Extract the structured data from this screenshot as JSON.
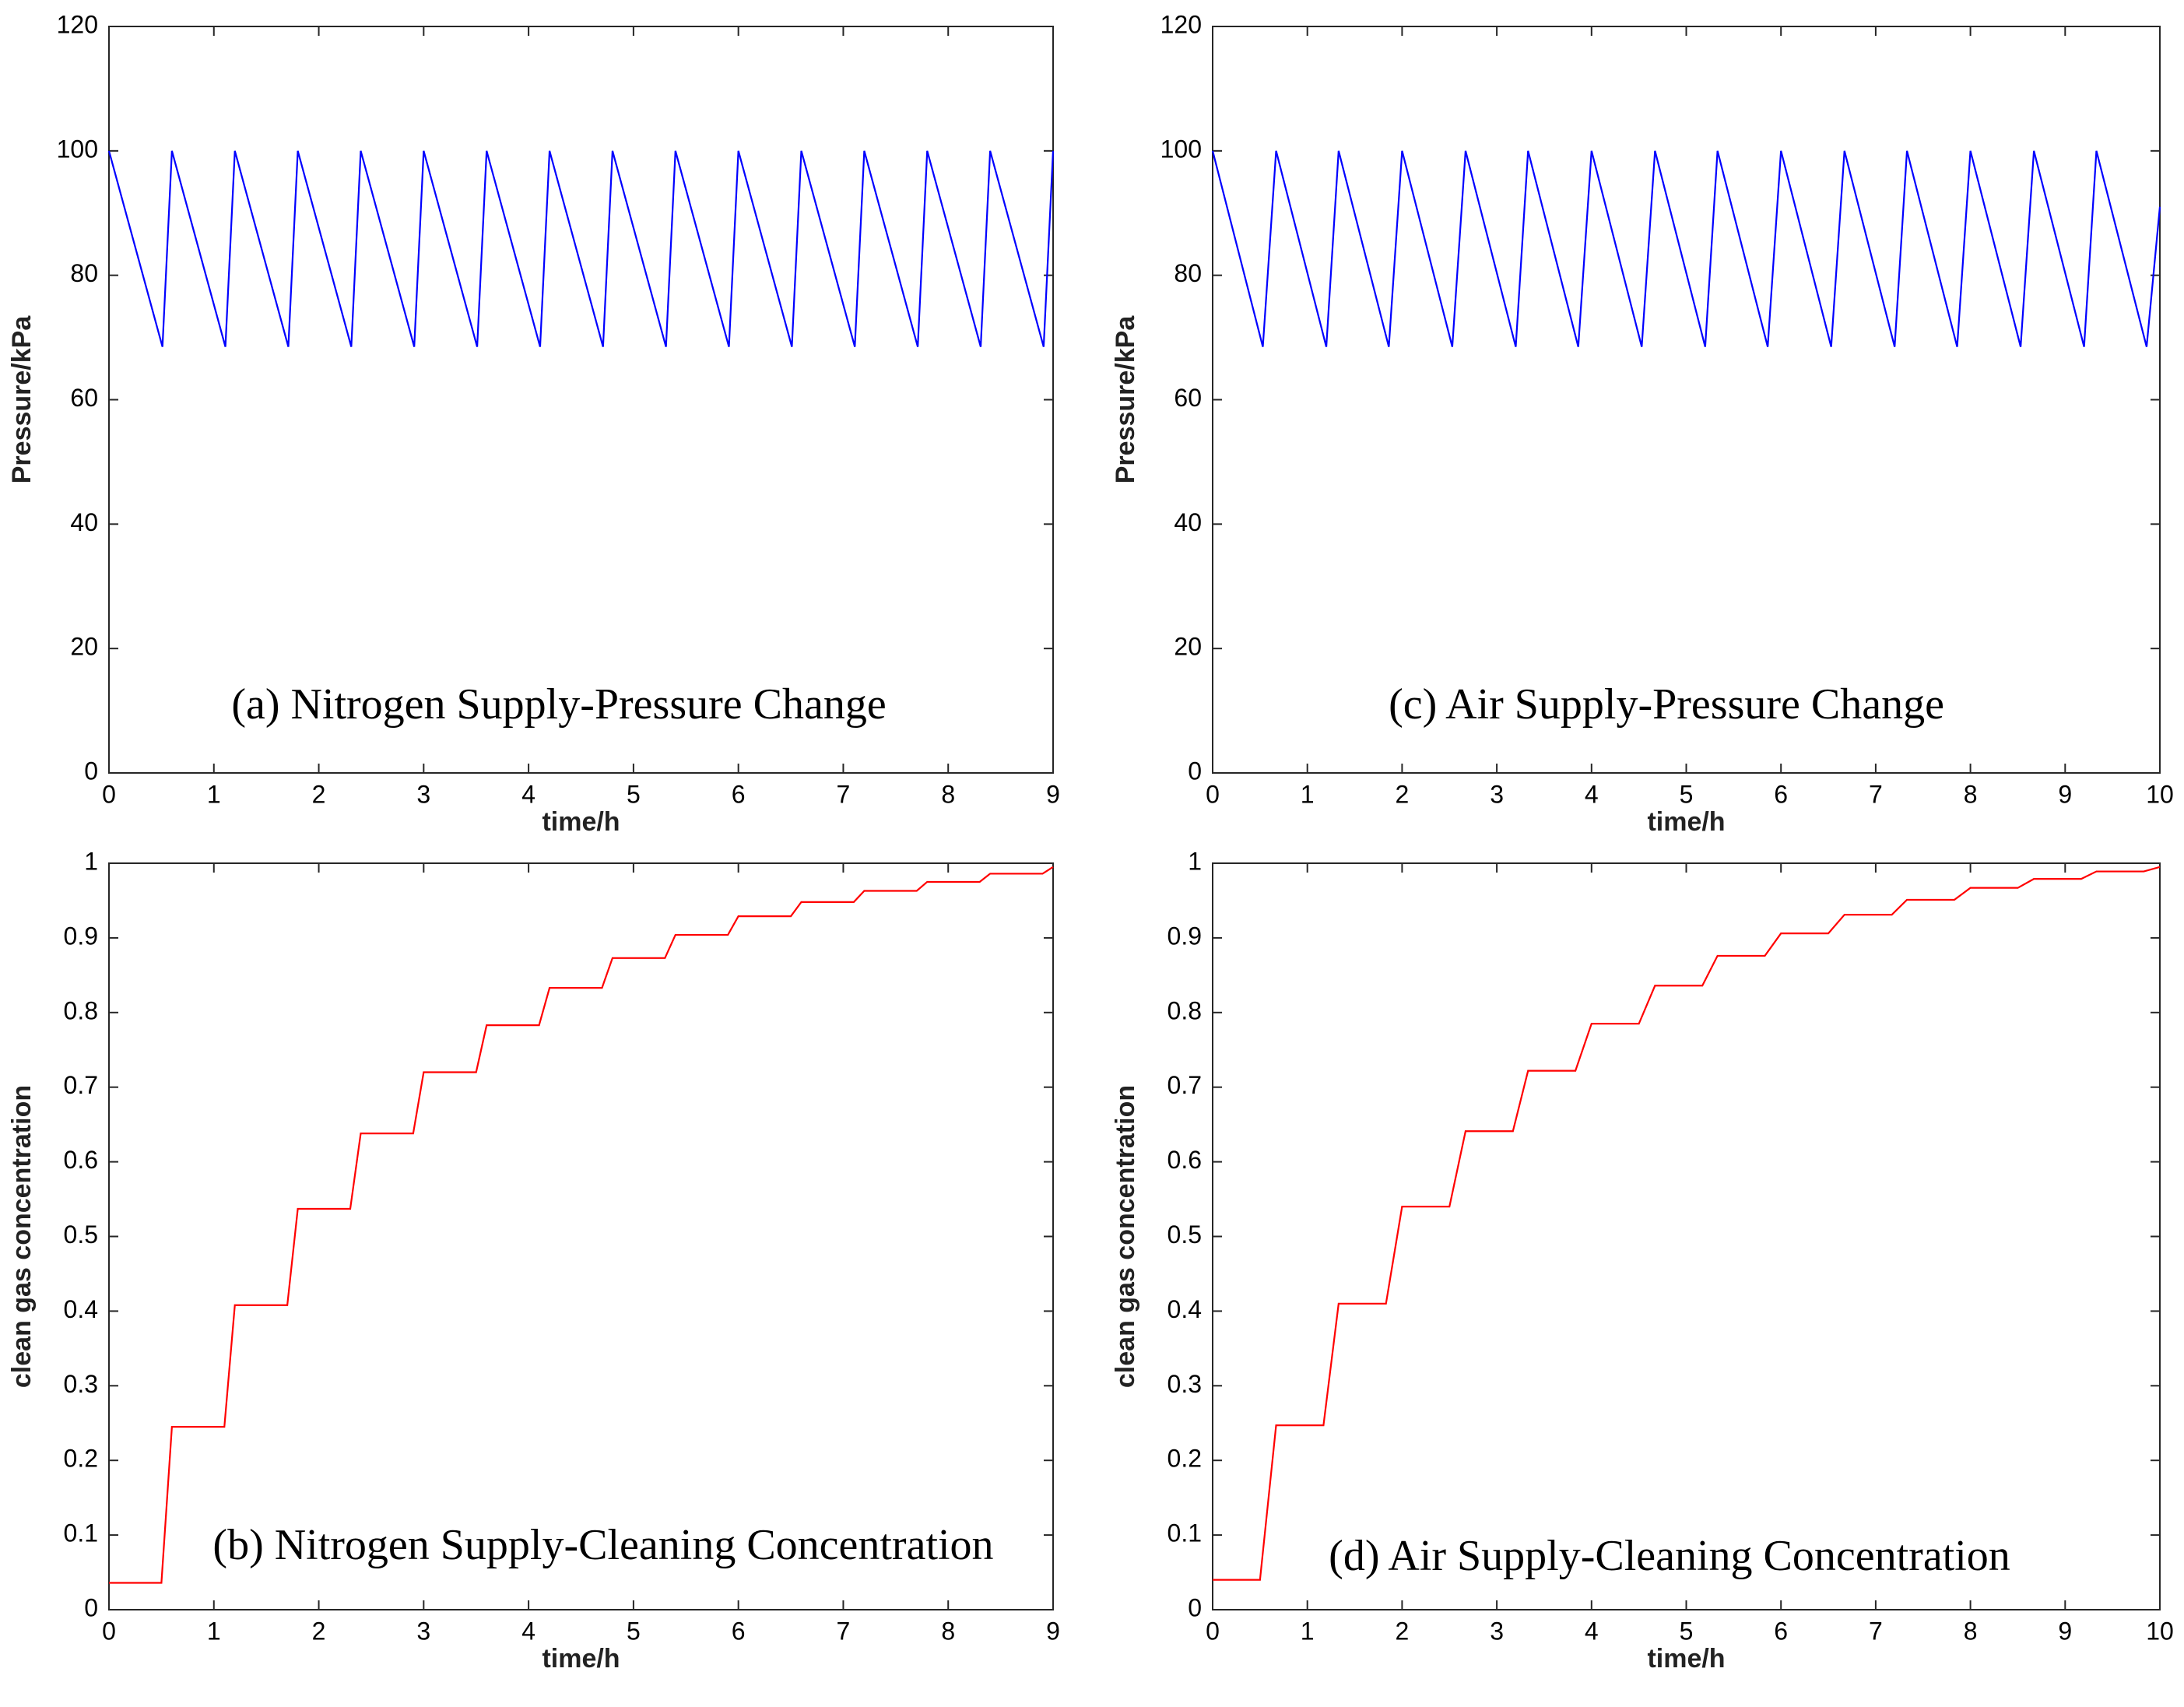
{
  "chart_data": [
    {
      "type": "line",
      "title": "(a) Nitrogen Supply-Pressure Change",
      "xlabel": "time/h",
      "ylabel": "Pressure/kPa",
      "x": [
        0,
        0.51,
        0.6,
        1.11,
        1.2,
        1.71,
        1.8,
        2.31,
        2.4,
        2.91,
        3.0,
        3.51,
        3.6,
        4.11,
        4.2,
        4.71,
        4.8,
        5.31,
        5.4,
        5.91,
        6.0,
        6.51,
        6.6,
        7.11,
        7.2,
        7.71,
        7.8,
        8.31,
        8.4,
        8.91,
        9.0
      ],
      "series": [
        {
          "color": "#0000ff",
          "values": [
            100,
            68.5,
            100,
            68.5,
            100,
            68.5,
            100,
            68.5,
            100,
            68.5,
            100,
            68.5,
            100,
            68.5,
            100,
            68.5,
            100,
            68.5,
            100,
            68.5,
            100,
            68.5,
            100,
            68.5,
            100,
            68.5,
            100,
            68.5,
            100,
            68.5,
            100
          ]
        }
      ],
      "xlim": [
        0,
        9
      ],
      "xticks": [
        0,
        1,
        2,
        3,
        4,
        5,
        6,
        7,
        8,
        9
      ],
      "ylim": [
        0,
        120
      ],
      "yticks": [
        0,
        20,
        40,
        60,
        80,
        100,
        120
      ]
    },
    {
      "type": "line",
      "title": "(b) Nitrogen Supply-Cleaning Concentration",
      "xlabel": "time/h",
      "ylabel": "clean gas concentration",
      "x": [
        0,
        0.5,
        0.6,
        1.1,
        1.2,
        1.7,
        1.8,
        2.3,
        2.4,
        2.9,
        3.0,
        3.5,
        3.6,
        4.1,
        4.2,
        4.7,
        4.8,
        5.3,
        5.4,
        5.9,
        6.0,
        6.5,
        6.6,
        7.1,
        7.2,
        7.7,
        7.8,
        8.3,
        8.4,
        8.9,
        9.0
      ],
      "series": [
        {
          "color": "#ff0000",
          "values": [
            0.036,
            0.036,
            0.245,
            0.245,
            0.408,
            0.408,
            0.537,
            0.537,
            0.638,
            0.638,
            0.72,
            0.72,
            0.783,
            0.783,
            0.833,
            0.833,
            0.873,
            0.873,
            0.904,
            0.904,
            0.929,
            0.929,
            0.948,
            0.948,
            0.963,
            0.963,
            0.975,
            0.975,
            0.986,
            0.986,
            0.995
          ]
        }
      ],
      "xlim": [
        0,
        9
      ],
      "xticks": [
        0,
        1,
        2,
        3,
        4,
        5,
        6,
        7,
        8,
        9
      ],
      "ylim": [
        0,
        1
      ],
      "yticks": [
        0,
        0.1,
        0.2,
        0.3,
        0.4,
        0.5,
        0.6,
        0.7,
        0.8,
        0.9,
        1
      ]
    },
    {
      "type": "line",
      "title": "(c) Air Supply-Pressure Change",
      "xlabel": "time/h",
      "ylabel": "Pressure/kPa",
      "x": [
        0,
        0.53,
        0.67,
        1.2,
        1.33,
        1.86,
        2.0,
        2.53,
        2.67,
        3.2,
        3.33,
        3.86,
        4.0,
        4.53,
        4.67,
        5.2,
        5.33,
        5.86,
        6.0,
        6.53,
        6.67,
        7.2,
        7.33,
        7.86,
        8.0,
        8.53,
        8.67,
        9.2,
        9.33,
        9.86,
        10
      ],
      "series": [
        {
          "color": "#0000ff",
          "values": [
            100,
            68.5,
            100,
            68.5,
            100,
            68.5,
            100,
            68.5,
            100,
            68.5,
            100,
            68.5,
            100,
            68.5,
            100,
            68.5,
            100,
            68.5,
            100,
            68.5,
            100,
            68.5,
            100,
            68.5,
            100,
            68.5,
            100,
            68.5,
            100,
            68.5,
            91
          ]
        }
      ],
      "xlim": [
        0,
        10
      ],
      "xticks": [
        0,
        1,
        2,
        3,
        4,
        5,
        6,
        7,
        8,
        9,
        10
      ],
      "ylim": [
        0,
        120
      ],
      "yticks": [
        0,
        20,
        40,
        60,
        80,
        100,
        120
      ]
    },
    {
      "type": "line",
      "title": "(d) Air Supply-Cleaning Concentration",
      "xlabel": "time/h",
      "ylabel": "clean gas concentration",
      "x": [
        0,
        0.5,
        0.67,
        1.17,
        1.33,
        1.83,
        2.0,
        2.5,
        2.67,
        3.17,
        3.33,
        3.83,
        4.0,
        4.5,
        4.67,
        5.17,
        5.33,
        5.83,
        6.0,
        6.5,
        6.67,
        7.17,
        7.33,
        7.83,
        8.0,
        8.5,
        8.67,
        9.17,
        9.33,
        9.83,
        10
      ],
      "series": [
        {
          "color": "#ff0000",
          "values": [
            0.04,
            0.04,
            0.247,
            0.247,
            0.41,
            0.41,
            0.54,
            0.54,
            0.641,
            0.641,
            0.722,
            0.722,
            0.785,
            0.785,
            0.836,
            0.836,
            0.876,
            0.876,
            0.906,
            0.906,
            0.931,
            0.931,
            0.951,
            0.951,
            0.967,
            0.967,
            0.979,
            0.979,
            0.989,
            0.989,
            0.995
          ]
        }
      ],
      "xlim": [
        0,
        10
      ],
      "xticks": [
        0,
        1,
        2,
        3,
        4,
        5,
        6,
        7,
        8,
        9,
        10
      ],
      "ylim": [
        0,
        1
      ],
      "yticks": [
        0,
        0.1,
        0.2,
        0.3,
        0.4,
        0.5,
        0.6,
        0.7,
        0.8,
        0.9,
        1
      ]
    }
  ]
}
